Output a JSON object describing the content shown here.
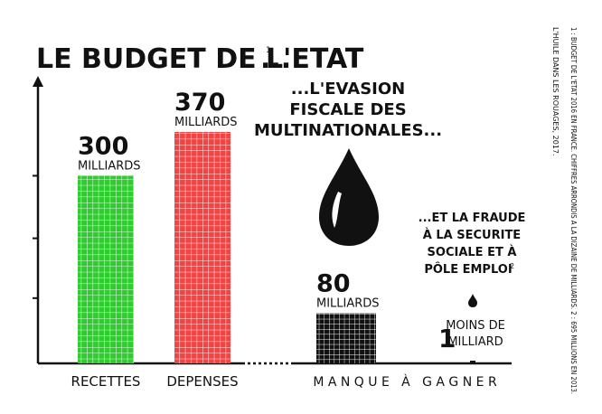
{
  "title": "LE BUDGET DE L'ETAT",
  "title_sup": "1",
  "title_ellipsis": "...",
  "side_note": {
    "line1": "L'HUILE DANS LES ROUAGES, 2017.",
    "line2": "1 : BUDGET DE L'ETAT 2016 EN FRANCE. CHIFFRES ARRONDIS A LA DIZAINE DE MILLIARDS. 2 : 695 MILLIONS EN 2013."
  },
  "evasion_label": [
    "...L'EVASION",
    "FISCALE DES",
    "MULTINATIONALES..."
  ],
  "fraude_label": [
    "...ET LA FRAUDE",
    "À LA SECURITE",
    "SOCIALE ET À",
    "PÔLE EMPLOI"
  ],
  "fraude_sup": "2",
  "manque_label": "M A N Q U E   À   G A G N E R",
  "icons": [
    "oil-drop-icon-large",
    "oil-drop-icon-small"
  ],
  "colors": {
    "recettes": "#2ecc2e",
    "depenses": "#f04545",
    "evasion": "#111111",
    "fraude": "#111111"
  },
  "chart_data": {
    "type": "bar",
    "unit": "MILLIARDS",
    "bars": [
      {
        "key": "recettes",
        "category": "RECETTES",
        "value": 300,
        "value_label": "300",
        "unit_label": "MILLIARDS"
      },
      {
        "key": "depenses",
        "category": "DEPENSES",
        "value": 370,
        "value_label": "370",
        "unit_label": "MILLIARDS"
      },
      {
        "key": "evasion",
        "category": "",
        "value": 80,
        "value_label": "80",
        "unit_label": "MILLIARDS"
      },
      {
        "key": "fraude",
        "category": "",
        "value": 1,
        "value_label": "1",
        "unit_label": "MOINS DE MILLIARD",
        "unit_lines": [
          "MOINS DE",
          "MILLIARD"
        ]
      }
    ],
    "ylim": [
      0,
      400
    ],
    "yticks": [
      100,
      200,
      300,
      400
    ],
    "grid": "cells"
  }
}
